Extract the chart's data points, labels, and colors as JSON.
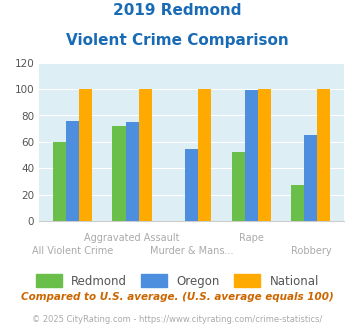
{
  "title_line1": "2019 Redmond",
  "title_line2": "Violent Crime Comparison",
  "categories": [
    "All Violent Crime",
    "Aggravated Assault",
    "Murder & Mans...",
    "Rape",
    "Robbery"
  ],
  "redmond": [
    60,
    72,
    0,
    52,
    27
  ],
  "oregon": [
    76,
    75,
    55,
    99,
    65
  ],
  "national": [
    100,
    100,
    100,
    100,
    100
  ],
  "redmond_color": "#6abf4b",
  "oregon_color": "#4d8fde",
  "national_color": "#ffaa00",
  "bg_color": "#ddeef5",
  "title_color": "#1a6bb5",
  "xlabels_color": "#aaaaaa",
  "footnote_color": "#cc6600",
  "copyright_color": "#aaaaaa",
  "copyright_link_color": "#4488cc",
  "ylim": [
    0,
    120
  ],
  "yticks": [
    0,
    20,
    40,
    60,
    80,
    100,
    120
  ],
  "bar_width": 0.22,
  "footnote": "Compared to U.S. average. (U.S. average equals 100)",
  "copyright_pre": "© 2025 CityRating.com - ",
  "copyright_link": "https://www.cityrating.com/crime-statistics/"
}
